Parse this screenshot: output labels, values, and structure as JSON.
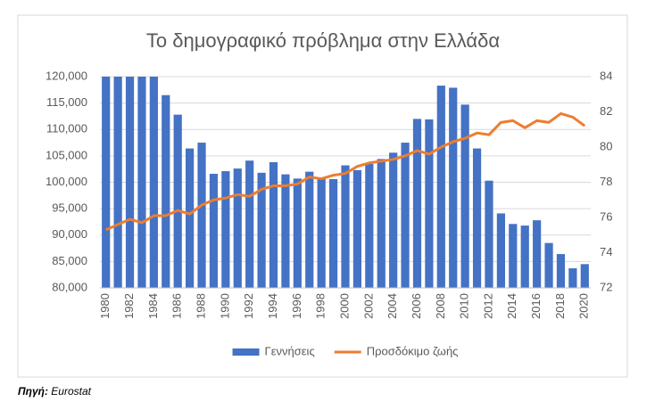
{
  "chart_data": {
    "type": "bar",
    "title": "Το δημογραφικό πρόβλημα στην Ελλάδα",
    "categories": [
      "1980",
      null,
      "1982",
      null,
      "1984",
      null,
      "1986",
      null,
      "1988",
      null,
      "1990",
      null,
      "1992",
      null,
      "1994",
      null,
      "1996",
      null,
      "1998",
      null,
      "2000",
      null,
      "2002",
      null,
      "2004",
      null,
      "2006",
      null,
      "2008",
      null,
      "2010",
      null,
      "2012",
      null,
      "2014",
      null,
      "2016",
      null,
      "2018",
      null,
      "2020"
    ],
    "series": [
      {
        "name": "Γεννήσεις",
        "type": "bar",
        "color": "#4472c4",
        "values": [
          120000,
          120000,
          120000,
          120000,
          120000,
          116500,
          112800,
          106400,
          107500,
          101600,
          102100,
          102600,
          104100,
          101800,
          103800,
          101500,
          100700,
          102000,
          100900,
          100600,
          103200,
          102300,
          103500,
          104400,
          105600,
          107500,
          112000,
          111900,
          118300,
          117900,
          114700,
          106400,
          100300,
          94100,
          92100,
          91800,
          92800,
          88500,
          86400,
          83700,
          84500
        ]
      },
      {
        "name": "Προσδόκιμο ζωής",
        "type": "line",
        "axis": "y2",
        "color": "#ed7d31",
        "values": [
          75.3,
          75.6,
          75.9,
          75.7,
          76.1,
          76.1,
          76.4,
          76.2,
          76.7,
          77.0,
          77.1,
          77.3,
          77.2,
          77.6,
          77.8,
          77.8,
          77.9,
          78.3,
          78.2,
          78.4,
          78.5,
          78.9,
          79.1,
          79.2,
          79.3,
          79.5,
          79.8,
          79.6,
          80.0,
          80.3,
          80.5,
          80.8,
          80.7,
          81.4,
          81.5,
          81.1,
          81.5,
          81.4,
          81.9,
          81.7,
          81.2
        ]
      }
    ],
    "ylim": [
      80000,
      120000
    ],
    "yticks": [
      {
        "value": 80000,
        "label": "80,000"
      },
      {
        "value": 85000,
        "label": "85,000"
      },
      {
        "value": 90000,
        "label": "90,000"
      },
      {
        "value": 95000,
        "label": "95,000"
      },
      {
        "value": 100000,
        "label": "100,000"
      },
      {
        "value": 105000,
        "label": "105,000"
      },
      {
        "value": 110000,
        "label": "110,000"
      },
      {
        "value": 115000,
        "label": "115,000"
      },
      {
        "value": 120000,
        "label": "120,000"
      }
    ],
    "y2lim": [
      72,
      84
    ],
    "y2ticks": [
      72,
      74,
      76,
      78,
      80,
      82,
      84
    ],
    "legend": "bottom"
  },
  "source": {
    "label": "Πηγή:",
    "text": "Eurostat"
  }
}
